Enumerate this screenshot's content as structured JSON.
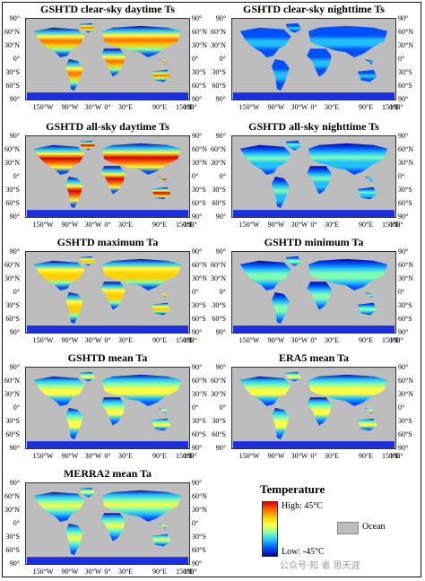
{
  "panels": [
    {
      "title": "GSHTD clear-sky daytime Ts"
    },
    {
      "title": "GSHTD clear-sky nighttime Ts"
    },
    {
      "title": "GSHTD all-sky daytime Ts"
    },
    {
      "title": "GSHTD all-sky nighttime Ts"
    },
    {
      "title": "GSHTD maximum Ta"
    },
    {
      "title": "GSHTD minimum Ta"
    },
    {
      "title": "GSHTD mean Ta"
    },
    {
      "title": "ERA5 mean Ta"
    },
    {
      "title": "MERRA2 mean Ta"
    }
  ],
  "lat_labels_left": [
    "90°",
    "60°N",
    "30°N",
    "0°",
    "30°S",
    "60°S",
    "90°"
  ],
  "lat_labels_right": [
    "90°",
    "60°N",
    "30°N",
    "0°",
    "30°S",
    "60°S",
    "90°"
  ],
  "lon_labels": [
    "150°W",
    "90°W",
    "30°W",
    "0°",
    "30°E",
    "90°E",
    "150°E",
    "180°"
  ],
  "legend": {
    "title": "Temperature",
    "high": "High: 45°C",
    "low": "Low: -45°C",
    "ocean": "Ocean",
    "colors": [
      "#d40000",
      "#ff6a00",
      "#ffd000",
      "#ffff40",
      "#7fffb0",
      "#20c0ff",
      "#0050ff",
      "#0a00a0"
    ],
    "ocean_color": "#bdbdbd"
  },
  "watermark": "公众号·知 者 思天涯"
}
